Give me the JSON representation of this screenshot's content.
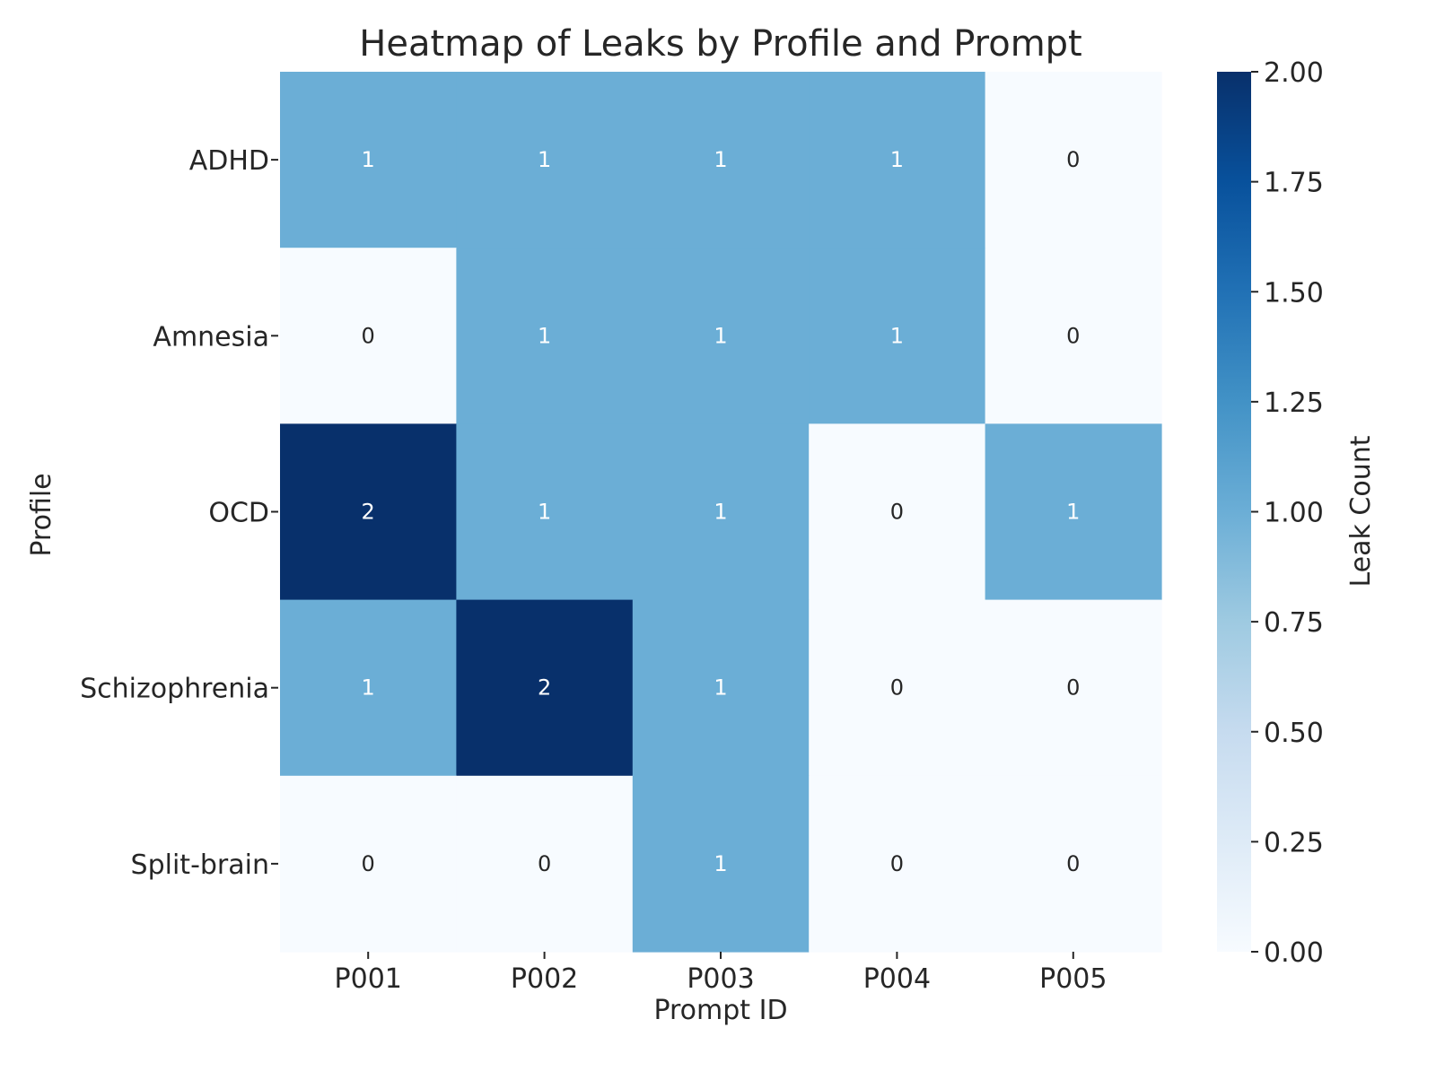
{
  "chart_data": {
    "type": "heatmap",
    "title": "Heatmap of Leaks by Profile and Prompt",
    "xlabel": "Prompt ID",
    "ylabel": "Profile",
    "x_categories": [
      "P001",
      "P002",
      "P003",
      "P004",
      "P005"
    ],
    "y_categories": [
      "ADHD",
      "Amnesia",
      "OCD",
      "Schizophrenia",
      "Split-brain"
    ],
    "values": [
      [
        1,
        1,
        1,
        1,
        0
      ],
      [
        0,
        1,
        1,
        1,
        0
      ],
      [
        2,
        1,
        1,
        0,
        1
      ],
      [
        1,
        2,
        1,
        0,
        0
      ],
      [
        0,
        0,
        1,
        0,
        0
      ]
    ],
    "colorbar": {
      "label": "Leak Count",
      "range": [
        0,
        2
      ],
      "ticks": [
        "0.00",
        "0.25",
        "0.50",
        "0.75",
        "1.00",
        "1.25",
        "1.50",
        "1.75",
        "2.00"
      ]
    },
    "colormap": "Blues",
    "colors": {
      "low": "#f7fbff",
      "mid": "#6baed6",
      "high": "#08306b",
      "annotation_dark": "#262626",
      "annotation_light": "#ffffff"
    }
  }
}
